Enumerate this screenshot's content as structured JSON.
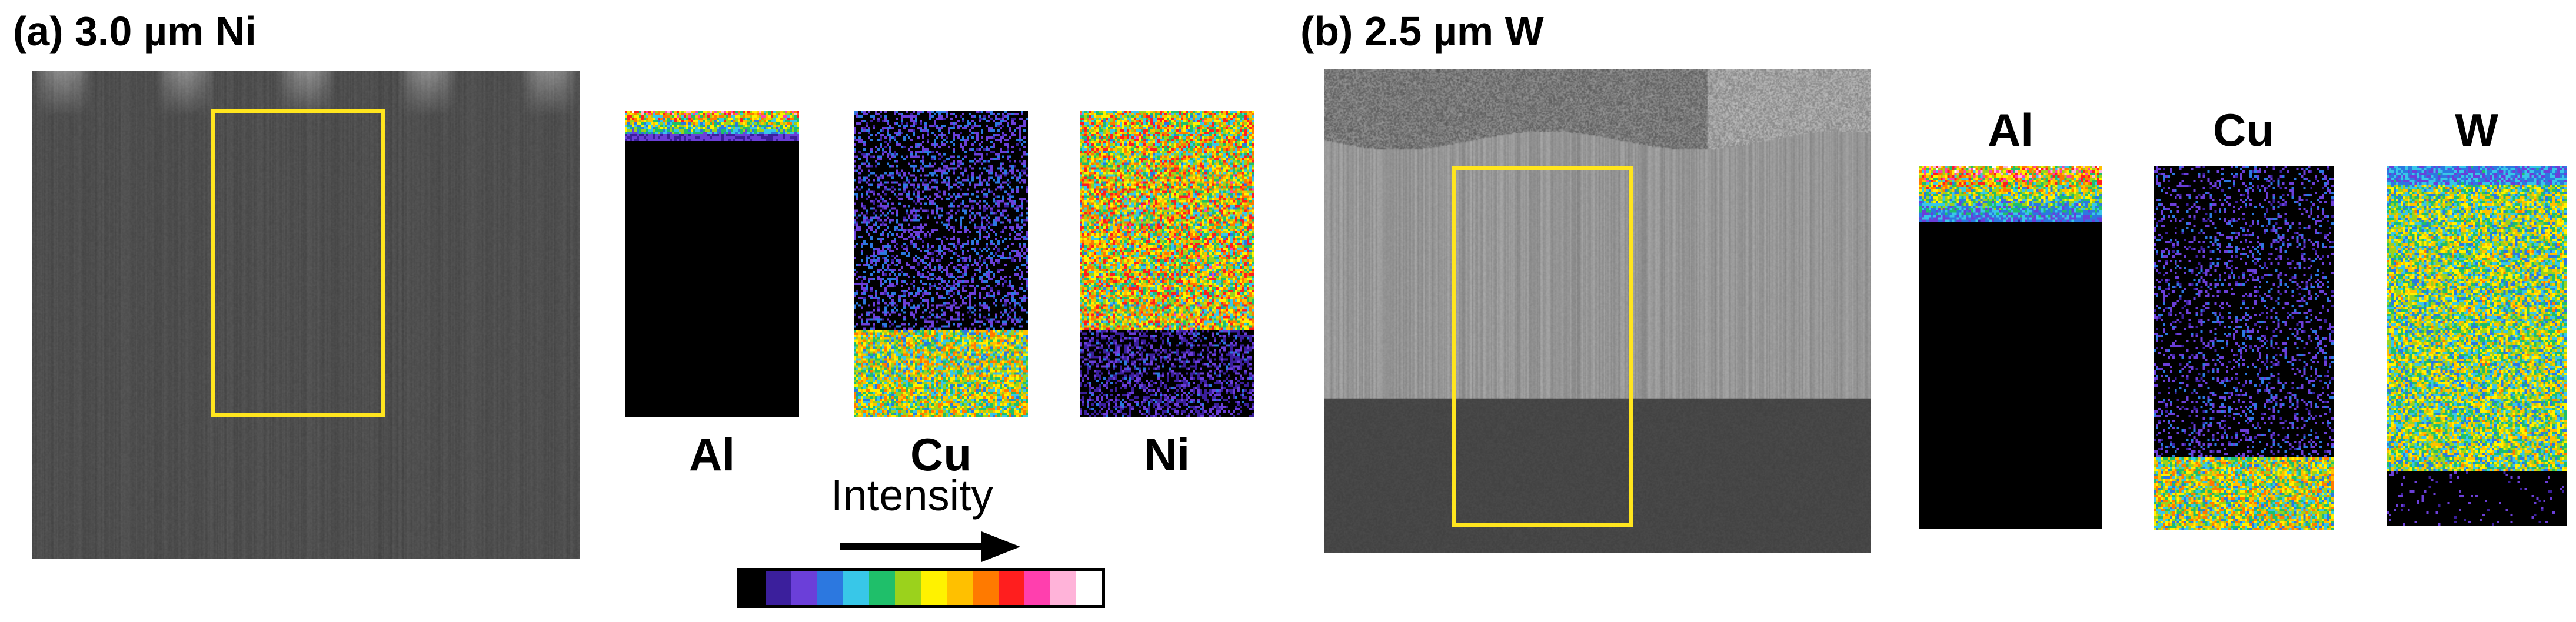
{
  "panel_a": {
    "title": "(a) 3.0 µm Ni",
    "maps": [
      {
        "label": "Al",
        "element": "Al"
      },
      {
        "label": "Cu",
        "element": "Cu"
      },
      {
        "label": "Ni",
        "element": "Ni"
      }
    ]
  },
  "panel_b": {
    "title": "(b) 2.5 µm W",
    "maps": [
      {
        "label": "Al",
        "element": "Al"
      },
      {
        "label": "Cu",
        "element": "Cu"
      },
      {
        "label": "W",
        "element": "W"
      }
    ]
  },
  "legend": {
    "intensity_label": "Intensity",
    "colorbar_colors": [
      "#000000",
      "#3b1f9c",
      "#6b3fd9",
      "#2c78e0",
      "#38c7e8",
      "#1fbf6a",
      "#9bd21c",
      "#fff200",
      "#ffc000",
      "#ff7a00",
      "#ff1e1e",
      "#ff3fae",
      "#ffb3d9",
      "#ffffff"
    ]
  },
  "colors": {
    "roi_outline": "#ffe51e",
    "map_background": "#000000"
  }
}
